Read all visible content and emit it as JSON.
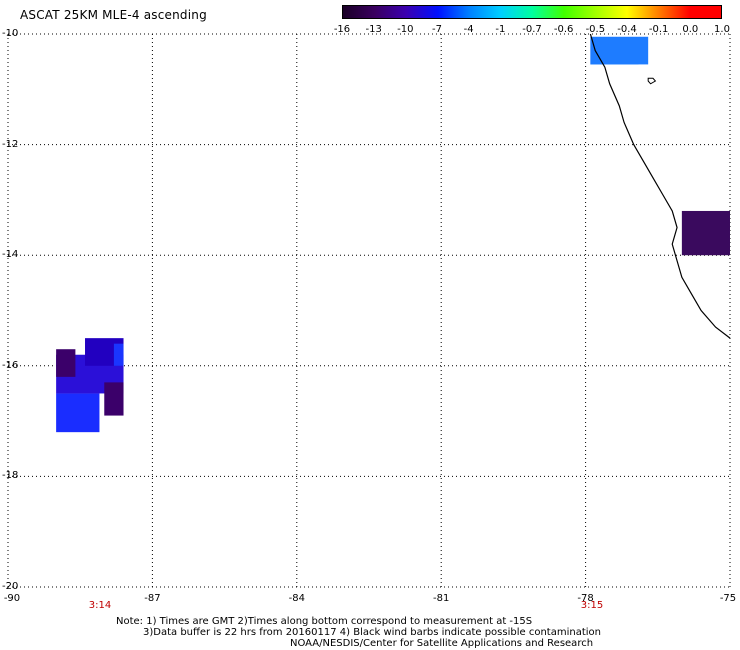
{
  "title": "ASCAT 25KM MLE-4 ascending",
  "colorbar": {
    "labels": [
      "-16",
      "-13",
      "-10",
      "-7",
      "-4",
      "-1",
      "-0.7",
      "-0.6",
      "-0.5",
      "-0.4",
      "-0.1",
      "0.0",
      "1.0"
    ],
    "colors": [
      "#1a0026",
      "#3a0060",
      "#3b00b0",
      "#0010ff",
      "#0080ff",
      "#00d0ff",
      "#00ffa0",
      "#40ff00",
      "#a0ff00",
      "#ffff00",
      "#ff8000",
      "#ff0000"
    ]
  },
  "axes": {
    "lat_labels": [
      "-10",
      "-12",
      "-14",
      "-16",
      "-18",
      "-20"
    ],
    "lon_labels": [
      "-90",
      "-87",
      "-84",
      "-81",
      "-78",
      "-75"
    ],
    "lon_range": [
      -90,
      -75
    ],
    "lat_range": [
      -20,
      -10
    ]
  },
  "times": [
    "3:14",
    "3:15"
  ],
  "notes": [
    "Note: 1) Times are GMT 2)Times along bottom correspond to measurement at -15S",
    "3)Data buffer is 22 hrs from 20160117 4) Black wind barbs indicate possible contamination",
    "NOAA/NESDIS/Center for Satellite Applications and Research"
  ],
  "map_data": {
    "cells": [
      {
        "lon": [
          -77.9,
          -76.9
        ],
        "lat": [
          -10.1,
          -10.55
        ],
        "color": "#1e7cff"
      },
      {
        "lon": [
          -77.9,
          -76.7
        ],
        "lat": [
          -10.55,
          -10.05
        ],
        "color": "#1e7cff"
      },
      {
        "lon": [
          -76.0,
          -75.0
        ],
        "lat": [
          -13.2,
          -14.0
        ],
        "color": "#3a0a5e"
      },
      {
        "lon": [
          -89.0,
          -88.1
        ],
        "lat": [
          -16.5,
          -17.2
        ],
        "color": "#1a2dff"
      },
      {
        "lon": [
          -89.0,
          -87.6
        ],
        "lat": [
          -15.8,
          -16.5
        ],
        "color": "#2b10d8"
      },
      {
        "lon": [
          -88.4,
          -87.6
        ],
        "lat": [
          -15.5,
          -16.0
        ],
        "color": "#2200c0"
      },
      {
        "lon": [
          -89.0,
          -88.6
        ],
        "lat": [
          -15.7,
          -16.2
        ],
        "color": "#3b006a"
      },
      {
        "lon": [
          -88.0,
          -87.6
        ],
        "lat": [
          -16.3,
          -16.9
        ],
        "color": "#3b006a"
      },
      {
        "lon": [
          -87.8,
          -87.6
        ],
        "lat": [
          -15.6,
          -16.0
        ],
        "color": "#1a35ff"
      }
    ],
    "coastline": [
      [
        -77.9,
        -10.0
      ],
      [
        -77.8,
        -10.3
      ],
      [
        -77.6,
        -10.6
      ],
      [
        -77.5,
        -10.9
      ],
      [
        -77.3,
        -11.3
      ],
      [
        -77.2,
        -11.6
      ],
      [
        -77.0,
        -12.0
      ],
      [
        -76.8,
        -12.3
      ],
      [
        -76.6,
        -12.6
      ],
      [
        -76.4,
        -12.9
      ],
      [
        -76.2,
        -13.2
      ],
      [
        -76.1,
        -13.5
      ],
      [
        -76.2,
        -13.8
      ],
      [
        -76.1,
        -14.1
      ],
      [
        -76.0,
        -14.4
      ],
      [
        -75.8,
        -14.7
      ],
      [
        -75.6,
        -15.0
      ],
      [
        -75.3,
        -15.3
      ],
      [
        -75.0,
        -15.5
      ]
    ],
    "island": [
      [
        -76.7,
        -10.8
      ],
      [
        -76.6,
        -10.8
      ],
      [
        -76.55,
        -10.85
      ],
      [
        -76.65,
        -10.9
      ],
      [
        -76.7,
        -10.85
      ]
    ]
  }
}
